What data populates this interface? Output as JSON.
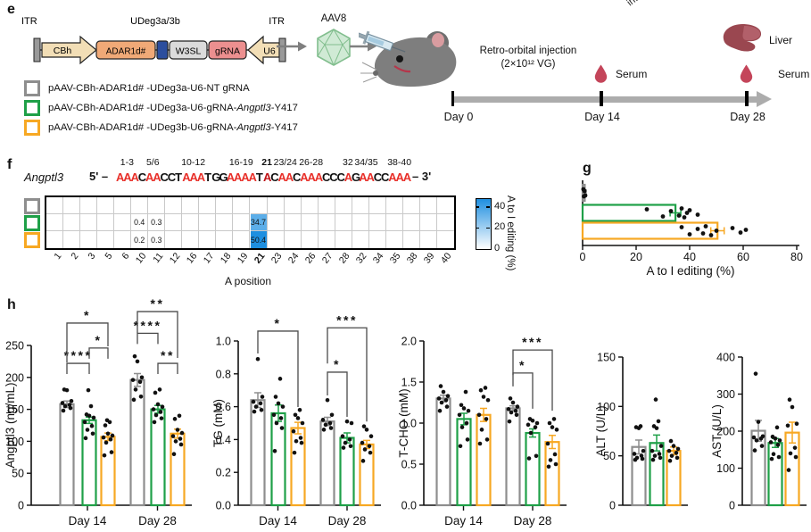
{
  "panels": {
    "e": "e",
    "f": "f",
    "g": "g",
    "h": "h"
  },
  "colors": {
    "gray": "#8E8E8E",
    "green": "#1FA048",
    "orange": "#F7A823",
    "heat_blue": "#1F8FE0",
    "seq_red": "#E8302A",
    "timeline": "#ACACAC",
    "drop": "#C4455A",
    "liver": "#9A4750",
    "aav_fill": "#D0EAD5",
    "aav_stroke": "#82BE8E",
    "tan": "#F2DEB6",
    "adar_fill": "#F0A977",
    "linker_blue": "#2C4E9E",
    "w3sl_gray": "#DBDBDB",
    "grna_pink": "#EC8F8F",
    "itr_gray": "#9A9A9A"
  },
  "construct": {
    "itr_left": "ITR",
    "itr_right": "ITR",
    "udeg": "UDeg3a/3b",
    "cbh": "CBh",
    "adar": "ADAR1d#",
    "w3sl": "W3SL",
    "grna": "gRNA",
    "u6": "U6"
  },
  "aav_label": "AAV8",
  "cropped_label": "intra",
  "injection": {
    "line1": "Retro-orbital injection",
    "line2": "(2×10¹² VG)"
  },
  "timeline": {
    "days": [
      "Day 0",
      "Day 14",
      "Day 28"
    ],
    "serum": "Serum",
    "liver_label": "Liver"
  },
  "legend": [
    {
      "color": "#8E8E8E",
      "prefix": "pAAV-CBh-ADAR1d# -UDeg3a-U6-NT gRNA",
      "italic": "",
      "suffix": ""
    },
    {
      "color": "#1FA048",
      "prefix": "pAAV-CBh-ADAR1d# -UDeg3a-U6-gRNA-",
      "italic": "Angptl3",
      "suffix": "-Y417"
    },
    {
      "color": "#F7A823",
      "prefix": "pAAV-CBh-ADAR1d# -UDeg3b-U6-gRNA-",
      "italic": "Angptl3",
      "suffix": "-Y417"
    }
  ],
  "panel_f": {
    "gene": "Angptl3",
    "seq_prefix": "5' –",
    "seq": "AAACAACCTAAATGGAAAATACAACAAACCCAGAACCAAA",
    "seq_suffix": "– 3'",
    "bold_pos": 21,
    "pos_labels": [
      {
        "text": "1-3",
        "at": 2
      },
      {
        "text": "5/6",
        "at": 5.5
      },
      {
        "text": "10-12",
        "at": 11
      },
      {
        "text": "16-19",
        "at": 17.5
      },
      {
        "text": "21",
        "at": 21,
        "bold": true
      },
      {
        "text": "23/24",
        "at": 23.5
      },
      {
        "text": "26-28",
        "at": 27
      },
      {
        "text": "32",
        "at": 32
      },
      {
        "text": "34/35",
        "at": 34.5
      },
      {
        "text": "38-40",
        "at": 39
      }
    ]
  },
  "chart_data": [
    {
      "id": "editing-heatmap",
      "type": "heatmap",
      "xlabel": "A position",
      "columns": [
        1,
        2,
        3,
        5,
        6,
        10,
        11,
        12,
        16,
        17,
        18,
        19,
        21,
        23,
        24,
        26,
        27,
        28,
        32,
        34,
        35,
        38,
        39,
        40
      ],
      "rows": [
        {
          "color": "#8E8E8E",
          "values": {}
        },
        {
          "color": "#1FA048",
          "values": {
            "10": 0.4,
            "11": 0.3,
            "21": 34.7
          }
        },
        {
          "color": "#F7A823",
          "values": {
            "10": 0.2,
            "11": 0.3,
            "21": 50.4
          }
        }
      ],
      "colorbar": {
        "ticks": [
          40,
          20,
          0
        ],
        "max": 48,
        "label": "A to I editing (%)"
      }
    },
    {
      "id": "g",
      "type": "bar_scatter_horizontal",
      "xlabel": "A to I editing (%)",
      "xlim": [
        0,
        80
      ],
      "xticks": [
        0,
        20,
        40,
        60,
        80
      ],
      "series": [
        {
          "name": "pAAV-CBh-ADAR1d# -UDeg3a-U6-NT gRNA",
          "color": "#8E8E8E",
          "mean": 0.8,
          "sem": 0.5,
          "points": [
            0.3,
            0.5,
            0.7,
            1.0
          ]
        },
        {
          "name": "pAAV-CBh-ADAR1d# -UDeg3a-U6-gRNA-Angptl3-Y417",
          "color": "#1FA048",
          "mean": 34.7,
          "sem": 2.0,
          "points": [
            24,
            30,
            33,
            36,
            37,
            38,
            39,
            40,
            43
          ]
        },
        {
          "name": "pAAV-CBh-ADAR1d# -UDeg3b-U6-gRNA-Angptl3-Y417",
          "color": "#F7A823",
          "mean": 50.4,
          "sem": 2.5,
          "points": [
            37,
            40,
            43,
            45,
            46,
            48,
            50,
            56,
            59,
            61
          ]
        }
      ]
    },
    {
      "id": "angptl3",
      "type": "grouped_bar_scatter",
      "ylabel": "Angptl3 (ng/mL)",
      "ylim": [
        0,
        250
      ],
      "yticks": [
        "0",
        "50",
        "100",
        "150",
        "200",
        "250"
      ],
      "groups": [
        "Day 14",
        "Day 28"
      ],
      "series_colors": [
        "#8E8E8E",
        "#1FA048",
        "#F7A823"
      ],
      "bars": [
        [
          {
            "mean": 158,
            "sem": 5,
            "points": [
              148,
              152,
              155,
              157,
              160,
              163,
              180,
              181
            ]
          },
          {
            "mean": 133,
            "sem": 5,
            "points": [
              105,
              112,
              118,
              124,
              130,
              137,
              140,
              142,
              155,
              180
            ]
          },
          {
            "mean": 107,
            "sem": 6,
            "points": [
              78,
              83,
              98,
              103,
              106,
              109,
              112,
              125,
              130,
              133
            ]
          }
        ],
        [
          {
            "mean": 196,
            "sem": 10,
            "points": [
              165,
              170,
              181,
              193,
              196,
              200,
              225,
              233
            ]
          },
          {
            "mean": 150,
            "sem": 6,
            "points": [
              130,
              136,
              141,
              146,
              150,
              154,
              158,
              176,
              181
            ]
          },
          {
            "mean": 112,
            "sem": 7,
            "points": [
              80,
              95,
              100,
              104,
              108,
              113,
              118,
              135,
              140
            ]
          }
        ]
      ],
      "sig": [
        {
          "group": 0,
          "s1": 0,
          "s2": 1,
          "y": 222,
          "label": "****",
          "legs": [
            12,
            12
          ]
        },
        {
          "group": 0,
          "s1": 1,
          "s2": 2,
          "y": 246,
          "label": "*",
          "legs": [
            12,
            12
          ]
        },
        {
          "group": 0,
          "s1": 0,
          "s2": 2,
          "y": 285,
          "label": "*",
          "legs": [
            44,
            26
          ]
        },
        {
          "group": 1,
          "s1": 0,
          "s2": 1,
          "y": 269,
          "label": "****",
          "legs": [
            12,
            12
          ]
        },
        {
          "group": 1,
          "s1": 1,
          "s2": 2,
          "y": 222,
          "label": "**",
          "legs": [
            12,
            12
          ]
        },
        {
          "group": 1,
          "s1": 0,
          "s2": 2,
          "y": 303,
          "label": "**",
          "legs": [
            24,
            52
          ]
        }
      ]
    },
    {
      "id": "tg",
      "type": "grouped_bar_scatter",
      "ylabel": "TG (mM)",
      "ylim": [
        0,
        1.0
      ],
      "yticks": [
        "0.0",
        "0.2",
        "0.4",
        "0.6",
        "0.8",
        "1.0"
      ],
      "groups": [
        "Day 14",
        "Day 28"
      ],
      "series_colors": [
        "#8E8E8E",
        "#1FA048",
        "#F7A823"
      ],
      "bars": [
        [
          {
            "mean": 0.64,
            "sem": 0.045,
            "points": [
              0.57,
              0.58,
              0.6,
              0.62,
              0.63,
              0.66,
              0.89
            ]
          },
          {
            "mean": 0.56,
            "sem": 0.05,
            "points": [
              0.33,
              0.47,
              0.5,
              0.53,
              0.55,
              0.6,
              0.62,
              0.66,
              0.77
            ]
          },
          {
            "mean": 0.47,
            "sem": 0.035,
            "points": [
              0.32,
              0.38,
              0.39,
              0.41,
              0.45,
              0.5,
              0.53,
              0.55,
              0.58
            ]
          }
        ],
        [
          {
            "mean": 0.51,
            "sem": 0.025,
            "points": [
              0.46,
              0.47,
              0.49,
              0.5,
              0.52,
              0.55,
              0.64
            ]
          },
          {
            "mean": 0.41,
            "sem": 0.03,
            "points": [
              0.35,
              0.36,
              0.38,
              0.4,
              0.42,
              0.5,
              0.51
            ]
          },
          {
            "mean": 0.37,
            "sem": 0.025,
            "points": [
              0.27,
              0.32,
              0.34,
              0.36,
              0.38,
              0.42,
              0.46,
              0.48
            ]
          }
        ]
      ],
      "sig": [
        {
          "group": 0,
          "s1": 0,
          "s2": 2,
          "y": 1.06,
          "label": "*",
          "legs": [
            25,
            85
          ]
        },
        {
          "group": 1,
          "s1": 0,
          "s2": 2,
          "y": 1.08,
          "label": "***",
          "legs": [
            40,
            105
          ]
        },
        {
          "group": 1,
          "s1": 0,
          "s2": 1,
          "y": 0.81,
          "label": "*",
          "legs": [
            26,
            50
          ]
        }
      ]
    },
    {
      "id": "tcho",
      "type": "grouped_bar_scatter",
      "ylabel": "T-CHO (mM)",
      "ylim": [
        0,
        2.0
      ],
      "yticks": [
        "0.0",
        "0.5",
        "1.0",
        "1.5",
        "2.0"
      ],
      "groups": [
        "Day 14",
        "Day 28"
      ],
      "series_colors": [
        "#8E8E8E",
        "#1FA048",
        "#F7A823"
      ],
      "bars": [
        [
          {
            "mean": 1.3,
            "sem": 0.04,
            "points": [
              1.15,
              1.2,
              1.25,
              1.28,
              1.3,
              1.33,
              1.38,
              1.45
            ]
          },
          {
            "mean": 1.05,
            "sem": 0.07,
            "points": [
              0.72,
              0.8,
              0.95,
              1.0,
              1.1,
              1.15,
              1.18,
              1.22,
              1.38
            ]
          },
          {
            "mean": 1.1,
            "sem": 0.08,
            "points": [
              0.75,
              0.8,
              0.92,
              1.05,
              1.1,
              1.28,
              1.32,
              1.4,
              1.43
            ]
          }
        ],
        [
          {
            "mean": 1.18,
            "sem": 0.03,
            "points": [
              1.02,
              1.1,
              1.13,
              1.15,
              1.17,
              1.2,
              1.25,
              1.3
            ]
          },
          {
            "mean": 0.88,
            "sem": 0.05,
            "points": [
              0.57,
              0.6,
              0.88,
              0.95,
              0.98,
              1.0,
              1.03,
              1.05
            ]
          },
          {
            "mean": 0.77,
            "sem": 0.08,
            "points": [
              0.47,
              0.5,
              0.55,
              0.62,
              0.75,
              0.92,
              0.95,
              1.0,
              1.05
            ]
          }
        ]
      ],
      "sig": [
        {
          "group": 1,
          "s1": 0,
          "s2": 2,
          "y": 1.89,
          "label": "***",
          "legs": [
            28,
            68
          ]
        },
        {
          "group": 1,
          "s1": 0,
          "s2": 1,
          "y": 1.61,
          "label": "*",
          "legs": [
            15,
            40
          ]
        }
      ]
    },
    {
      "id": "alt",
      "type": "grouped_bar_scatter",
      "ylabel": "ALT (U/L)",
      "ylim": [
        0,
        150
      ],
      "yticks": [
        "0",
        "50",
        "100",
        "150"
      ],
      "groups": [
        ""
      ],
      "series_colors": [
        "#8E8E8E",
        "#1FA048",
        "#F7A823"
      ],
      "bars": [
        [
          {
            "mean": 59,
            "sem": 7,
            "points": [
              46,
              47,
              48,
              50,
              52,
              55,
              78,
              79,
              80
            ]
          },
          {
            "mean": 63,
            "sem": 8,
            "points": [
              46,
              48,
              50,
              52,
              55,
              60,
              78,
              80,
              85,
              107
            ]
          },
          {
            "mean": 55,
            "sem": 4,
            "points": [
              45,
              48,
              50,
              53,
              55,
              57,
              60,
              65
            ]
          }
        ]
      ],
      "sig": []
    },
    {
      "id": "ast",
      "type": "grouped_bar_scatter",
      "ylabel": "AST (U/L)",
      "ylim": [
        0,
        400
      ],
      "yticks": [
        "0",
        "100",
        "200",
        "300",
        "400"
      ],
      "groups": [
        ""
      ],
      "series_colors": [
        "#8E8E8E",
        "#1FA048",
        "#F7A823"
      ],
      "bars": [
        [
          {
            "mean": 201,
            "sem": 28,
            "points": [
              148,
              160,
              175,
              180,
              183,
              186,
              225,
              355
            ]
          },
          {
            "mean": 168,
            "sem": 12,
            "points": [
              125,
              130,
              138,
              163,
              170,
              175,
              180,
              185,
              210
            ]
          },
          {
            "mean": 196,
            "sem": 28,
            "points": [
              95,
              130,
              140,
              155,
              215,
              220,
              265,
              285
            ]
          }
        ]
      ],
      "sig": []
    }
  ]
}
